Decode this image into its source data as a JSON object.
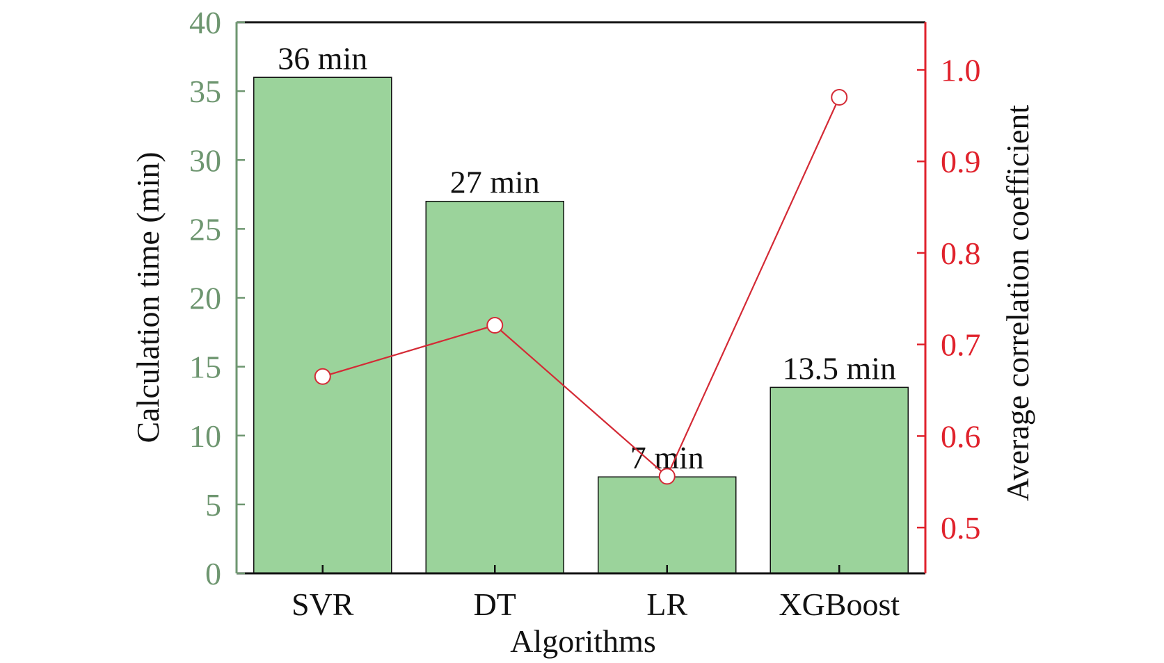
{
  "chart_data": {
    "type": "bar",
    "title": "",
    "xlabel": "Algorithms",
    "ylabel": "Calculation time (min)",
    "y2label": "Average correlation coefficient",
    "categories": [
      "SVR",
      "DT",
      "LR",
      "XGBoost"
    ],
    "ylim": [
      0,
      40
    ],
    "yticks": [
      "0",
      "5",
      "10",
      "15",
      "20",
      "25",
      "30",
      "35",
      "40"
    ],
    "y2lim": [
      0.45,
      1.052
    ],
    "y2ticks": [
      "0.5",
      "0.6",
      "0.7",
      "0.8",
      "0.9",
      "1.0"
    ],
    "series": [
      {
        "name": "Calculation time",
        "type": "bar",
        "axis": "left",
        "values": [
          36,
          27,
          7,
          13.5
        ],
        "labels": [
          "36 min",
          "27 min",
          "7 min",
          "13.5 min"
        ],
        "color": "#9BD39B"
      },
      {
        "name": "Average correlation coefficient",
        "type": "line",
        "axis": "right",
        "values": [
          0.665,
          0.721,
          0.556,
          0.97
        ],
        "color": "#D42A35"
      }
    ],
    "colors": {
      "left_axis": "#6E9670",
      "right_axis": "#E0222C"
    }
  }
}
